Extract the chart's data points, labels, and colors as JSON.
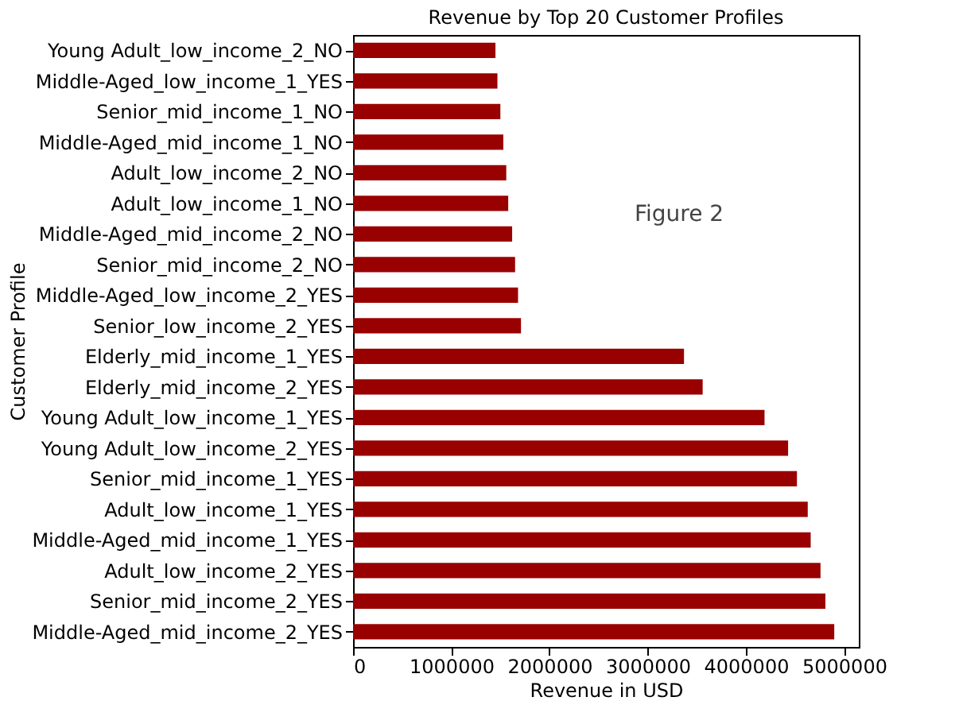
{
  "chart_data": {
    "type": "bar",
    "orientation": "horizontal",
    "title": "Revenue by Top 20 Customer Profiles",
    "xlabel": "Revenue in USD",
    "ylabel": "Customer Profile",
    "categories": [
      "Young Adult_low_income_2_NO",
      "Middle-Aged_low_income_1_YES",
      "Senior_mid_income_1_NO",
      "Middle-Aged_mid_income_1_NO",
      "Adult_low_income_2_NO",
      "Adult_low_income_1_NO",
      "Middle-Aged_mid_income_2_NO",
      "Senior_mid_income_2_NO",
      "Middle-Aged_low_income_2_YES",
      "Senior_low_income_2_YES",
      "Elderly_mid_income_1_YES",
      "Elderly_mid_income_2_YES",
      "Young Adult_low_income_1_YES",
      "Young Adult_low_income_2_YES",
      "Senior_mid_income_1_YES",
      "Adult_low_income_1_YES",
      "Middle-Aged_mid_income_1_YES",
      "Adult_low_income_2_YES",
      "Senior_mid_income_2_YES",
      "Middle-Aged_mid_income_2_YES"
    ],
    "values": [
      1450000,
      1470000,
      1500000,
      1530000,
      1560000,
      1580000,
      1620000,
      1650000,
      1680000,
      1710000,
      3370000,
      3560000,
      4190000,
      4430000,
      4520000,
      4630000,
      4660000,
      4760000,
      4810000,
      4900000
    ],
    "color": "#990000",
    "xlim": [
      0,
      5150000
    ],
    "xticks": [
      0,
      1000000,
      2000000,
      3000000,
      4000000,
      5000000
    ],
    "grid": false,
    "annotations": [
      "Figure 2"
    ]
  }
}
